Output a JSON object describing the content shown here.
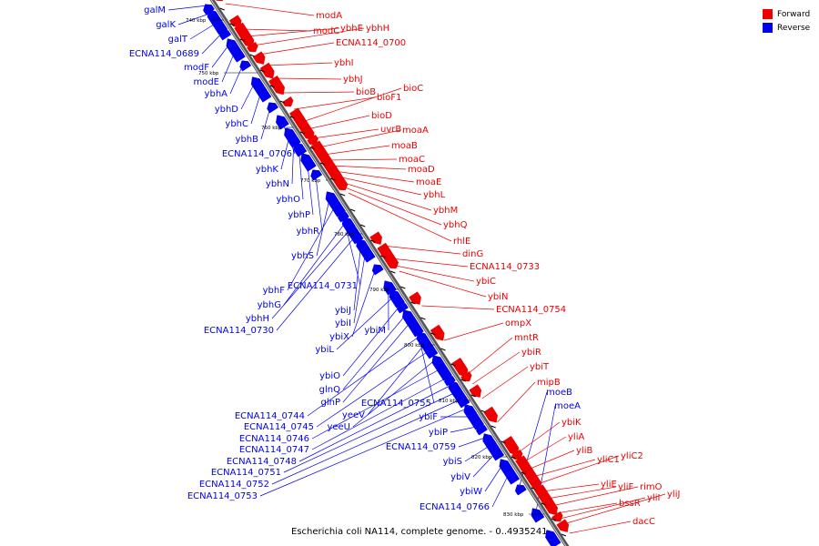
{
  "legend": {
    "forward_label": "Forward",
    "reverse_label": "Reverse",
    "forward_color": "#ee0000",
    "reverse_color": "#0000ee"
  },
  "caption": "Escherichia coli NA114, complete genome. - 0..4935241",
  "colors": {
    "forward": "#ee0000",
    "reverse": "#0000ee",
    "backbone": "#888888"
  },
  "ticks": [
    "740 kbp",
    "750 kbp",
    "760 kbp",
    "770 kbp",
    "780 kbp",
    "790 kbp",
    "800 kbp",
    "810 kbp",
    "820 kbp",
    "830 kbp"
  ],
  "reverse_genes": [
    "galM",
    "galK",
    "galT",
    "ECNA114_0689",
    "modF",
    "modE",
    "ybhA",
    "ybhD",
    "ybhC",
    "ybhB",
    "ECNA114_0706",
    "ybhK",
    "ybhN",
    "ybhO",
    "ybhP",
    "ybhR",
    "ybhS",
    "ybhF",
    "ECNA114_0731",
    "ybhG",
    "ybhH",
    "ECNA114_0730",
    "ybiJ",
    "ybiI",
    "ybiX",
    "ybiM",
    "ybiL",
    "ybiO",
    "glnQ",
    "glnP",
    "ECNA114_0755",
    "ECNA114_0744",
    "yeeV",
    "ECNA114_0745",
    "yeeU",
    "ECNA114_0746",
    "ECNA114_0747",
    "ECNA114_0748",
    "ECNA114_0751",
    "ECNA114_0752",
    "ECNA114_0753",
    "ybiF",
    "ybiP",
    "ECNA114_0759",
    "ybiS",
    "ybiV",
    "ybiW",
    "ECNA114_0766",
    "moeB",
    "moeA"
  ],
  "forward_genes": [
    "modA",
    "modC",
    "ybhE",
    "ybhH",
    "ECNA114_0700",
    "ybhI",
    "ybhJ",
    "bioB",
    "bioF1",
    "bioC",
    "bioD",
    "uvrB",
    "moaA",
    "moaB",
    "moaC",
    "moaD",
    "moaE",
    "ybhL",
    "ybhM",
    "ybhQ",
    "rhlE",
    "dinG",
    "ECNA114_0733",
    "ybiC",
    "ybiN",
    "ECNA114_0754",
    "ompX",
    "mntR",
    "ybiR",
    "ybiT",
    "mipB",
    "ybiK",
    "yliA",
    "yliB",
    "yliC1",
    "yliC2",
    "yliE",
    "yliF",
    "rimO",
    "bssR",
    "yliI",
    "yliJ",
    "dacC"
  ]
}
